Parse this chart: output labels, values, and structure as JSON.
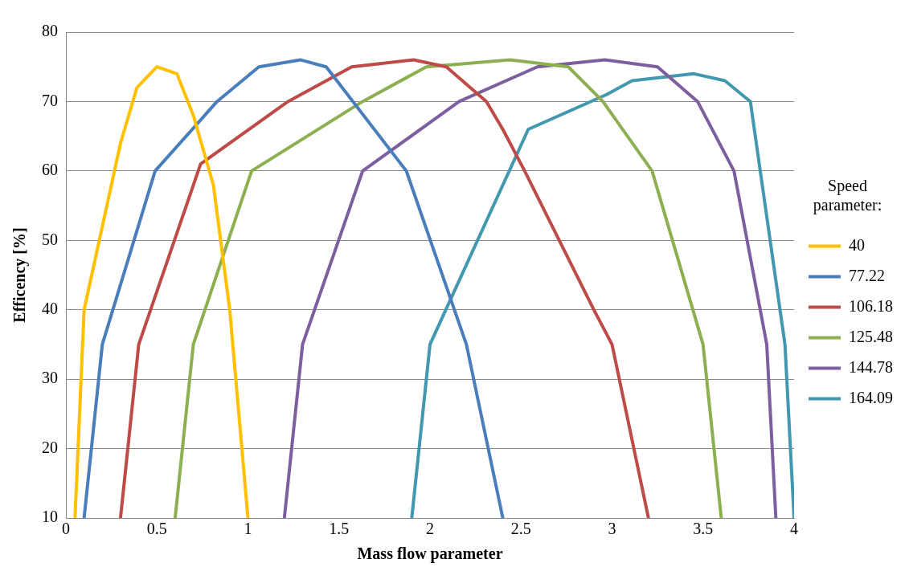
{
  "chart_data": {
    "type": "line",
    "xlabel": "Mass flow parameter",
    "ylabel": "Efficency [%]",
    "legend_title": "Speed parameter:",
    "legend": "right",
    "grid": "y",
    "marker": "none",
    "line_style": "solid",
    "xlim": [
      0,
      4
    ],
    "xticks": [
      0,
      0.5,
      1,
      1.5,
      2,
      2.5,
      3,
      3.5,
      4
    ],
    "ylim": [
      10,
      80
    ],
    "yticks": [
      10,
      20,
      30,
      40,
      50,
      60,
      70,
      80
    ],
    "series": [
      {
        "name": "40",
        "color": "#ffc000",
        "x": [
          0.05,
          0.1,
          0.3,
          0.39,
          0.5,
          0.61,
          0.7,
          0.81,
          0.9,
          1.0
        ],
        "values": [
          10,
          40,
          64,
          72,
          75,
          74,
          68,
          58,
          40,
          10
        ]
      },
      {
        "name": "77.22",
        "color": "#4a7ebb",
        "x": [
          0.1,
          0.2,
          0.49,
          0.83,
          1.06,
          1.29,
          1.43,
          1.87,
          2.2,
          2.4
        ],
        "values": [
          10,
          35,
          60,
          70,
          75,
          76,
          75,
          60,
          35,
          10
        ]
      },
      {
        "name": "106.18",
        "color": "#be4b48",
        "x": [
          0.3,
          0.4,
          0.74,
          1.22,
          1.57,
          1.91,
          2.09,
          2.31,
          2.4,
          2.52,
          2.9,
          3.0,
          3.2
        ],
        "values": [
          10,
          35,
          61,
          70,
          75,
          76,
          75,
          70,
          66,
          60,
          40,
          35,
          10
        ]
      },
      {
        "name": "125.48",
        "color": "#8cb050",
        "x": [
          0.6,
          0.7,
          1.02,
          1.63,
          1.98,
          2.44,
          2.76,
          2.95,
          3.22,
          3.5,
          3.6
        ],
        "values": [
          10,
          35,
          60,
          70,
          75,
          76,
          75,
          70,
          60,
          35,
          10
        ]
      },
      {
        "name": "144.78",
        "color": "#7d5fa0",
        "x": [
          1.2,
          1.3,
          1.63,
          2.16,
          2.59,
          2.96,
          3.25,
          3.47,
          3.67,
          3.85,
          3.9
        ],
        "values": [
          10,
          35,
          60,
          70,
          75,
          76,
          75,
          70,
          60,
          35,
          10
        ]
      },
      {
        "name": "164.09",
        "color": "#4198af",
        "x": [
          1.9,
          2.0,
          2.54,
          2.97,
          3.11,
          3.45,
          3.62,
          3.76,
          3.95,
          4.0
        ],
        "values": [
          10,
          35,
          66,
          71,
          73,
          74,
          73,
          70,
          35,
          10
        ]
      }
    ]
  }
}
